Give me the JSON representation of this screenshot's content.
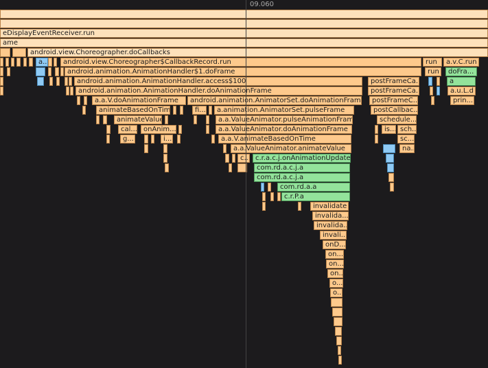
{
  "ruler": {
    "time": "09.060"
  },
  "frames": [
    {
      "label": "eDisplayEventReceiver.run"
    },
    {
      "label": "ame"
    },
    {
      "label": "android.view.Choreographer.doCallbacks"
    },
    {
      "label": "a..."
    },
    {
      "label": "android.view.Choreographer$CallbackRecord.run"
    },
    {
      "label": "run"
    },
    {
      "label": "a.v.C.run"
    },
    {
      "label": "android.animation.AnimationHandler$1.doFrame"
    },
    {
      "label": "run"
    },
    {
      "label": "doFra..."
    },
    {
      "label": "android.animation.AnimationHandler.access$100"
    },
    {
      "label": "postFrameCa..."
    },
    {
      "label": "a"
    },
    {
      "label": "android.animation.AnimationHandler.doAnimationFrame"
    },
    {
      "label": "postFrameCa..."
    },
    {
      "label": "a.u.L.d"
    },
    {
      "label": "a.a.V.doAnimationFrame"
    },
    {
      "label": "android.animation.AnimatorSet.doAnimationFrame"
    },
    {
      "label": "postFrameC..."
    },
    {
      "label": "prin..."
    },
    {
      "label": "animateBasedOnTime"
    },
    {
      "label": "fi..."
    },
    {
      "label": "a.animation.AnimatorSet.pulseFrame"
    },
    {
      "label": "postCallbac..."
    },
    {
      "label": "animateValue"
    },
    {
      "label": "a.a.ValueAnimator.pulseAnimationFrame"
    },
    {
      "label": "schedule..."
    },
    {
      "label": "cal..."
    },
    {
      "label": "onAnim..."
    },
    {
      "label": "a.a.ValueAnimator.doAnimationFrame"
    },
    {
      "label": "is..."
    },
    {
      "label": "sch..."
    },
    {
      "label": "g..."
    },
    {
      "label": "i..."
    },
    {
      "label": "a.a.V.animateBasedOnTime"
    },
    {
      "label": "sc..."
    },
    {
      "label": "a.a.ValueAnimator.animateValue"
    },
    {
      "label": "na..."
    },
    {
      "label": "c..."
    },
    {
      "label": "c.r.a.c.j.onAnimationUpdate"
    },
    {
      "label": "com.rd.a.c.j.a"
    },
    {
      "label": "com.rd.a.c.j.a"
    },
    {
      "label": "com.rd.a.a"
    },
    {
      "label": "c.r.P.a"
    },
    {
      "label": "invalidate"
    },
    {
      "label": "invalida..."
    },
    {
      "label": "invalida..."
    },
    {
      "label": "invali..."
    },
    {
      "label": "onD..."
    },
    {
      "label": "on..."
    },
    {
      "label": "on..."
    },
    {
      "label": "on..."
    },
    {
      "label": "o..."
    },
    {
      "label": "o..."
    }
  ]
}
